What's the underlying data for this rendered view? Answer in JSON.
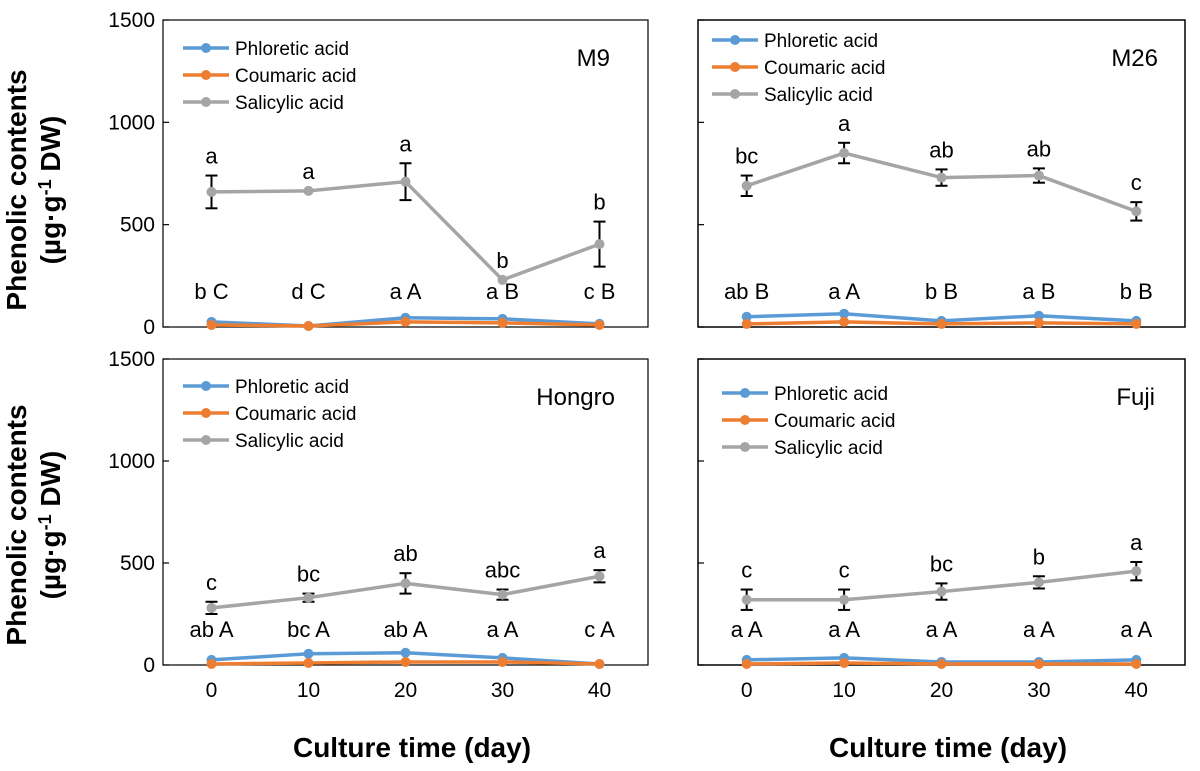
{
  "colors": {
    "phloretic": "#5b9bd5",
    "coumaric": "#ed7d31",
    "salicylic": "#a5a5a5",
    "axis": "#000000"
  },
  "labels": {
    "ylabel_line1": "Phenolic contents",
    "ylabel_line2_prefix": "(µg·g",
    "ylabel_line2_sup": "-1",
    "ylabel_line2_suffix": " DW)",
    "xlabel": "Culture time (day)"
  },
  "chart_data": [
    {
      "type": "line",
      "title": "M9",
      "x": [
        0,
        10,
        20,
        30,
        40
      ],
      "ylim": [
        0,
        1500
      ],
      "yticks": [
        0,
        500,
        1000,
        1500
      ],
      "legend": "top-left",
      "series": [
        {
          "name": "Phloretic acid",
          "values": [
            25,
            5,
            45,
            40,
            15
          ],
          "err": [
            0,
            0,
            0,
            0,
            0
          ]
        },
        {
          "name": "Coumaric acid",
          "values": [
            10,
            5,
            25,
            20,
            10
          ],
          "err": [
            0,
            0,
            0,
            0,
            0
          ]
        },
        {
          "name": "Salicylic acid",
          "values": [
            660,
            665,
            710,
            230,
            405
          ],
          "err": [
            80,
            0,
            90,
            0,
            110
          ]
        }
      ],
      "sig_upper": [
        "a",
        "a",
        "a",
        "b",
        "b"
      ],
      "sig_lower": [
        "b C",
        "d C",
        "a A",
        "a B",
        "c B"
      ]
    },
    {
      "type": "line",
      "title": "M26",
      "x": [
        0,
        10,
        20,
        30,
        40
      ],
      "ylim": [
        0,
        1500
      ],
      "yticks": [
        0,
        500,
        1000,
        1500
      ],
      "legend": "top-left",
      "series": [
        {
          "name": "Phloretic acid",
          "values": [
            50,
            65,
            30,
            55,
            30
          ],
          "err": [
            0,
            0,
            0,
            0,
            0
          ]
        },
        {
          "name": "Coumaric acid",
          "values": [
            15,
            25,
            15,
            20,
            15
          ],
          "err": [
            0,
            0,
            0,
            0,
            0
          ]
        },
        {
          "name": "Salicylic acid",
          "values": [
            690,
            850,
            730,
            740,
            565
          ],
          "err": [
            50,
            50,
            40,
            35,
            45
          ]
        }
      ],
      "sig_upper": [
        "bc",
        "a",
        "ab",
        "ab",
        "c"
      ],
      "sig_lower": [
        "ab B",
        "a A",
        "b B",
        "a B",
        "b B"
      ]
    },
    {
      "type": "line",
      "title": "Hongro",
      "x": [
        0,
        10,
        20,
        30,
        40
      ],
      "ylim": [
        0,
        1500
      ],
      "yticks": [
        0,
        500,
        1000,
        1500
      ],
      "legend": "top-left",
      "series": [
        {
          "name": "Phloretic acid",
          "values": [
            25,
            55,
            60,
            35,
            5
          ],
          "err": [
            0,
            0,
            0,
            0,
            0
          ]
        },
        {
          "name": "Coumaric acid",
          "values": [
            5,
            10,
            15,
            15,
            5
          ],
          "err": [
            0,
            0,
            0,
            0,
            0
          ]
        },
        {
          "name": "Salicylic acid",
          "values": [
            280,
            330,
            400,
            345,
            435
          ],
          "err": [
            30,
            20,
            50,
            25,
            30
          ]
        }
      ],
      "sig_upper": [
        "c",
        "bc",
        "ab",
        "abc",
        "a"
      ],
      "sig_lower": [
        "ab A",
        "bc A",
        "ab A",
        "a A",
        "c A"
      ]
    },
    {
      "type": "line",
      "title": "Fuji",
      "x": [
        0,
        10,
        20,
        30,
        40
      ],
      "ylim": [
        0,
        1500
      ],
      "yticks": [
        0,
        500,
        1000,
        1500
      ],
      "legend": "top-left",
      "series": [
        {
          "name": "Phloretic acid",
          "values": [
            25,
            35,
            15,
            15,
            25
          ],
          "err": [
            0,
            0,
            0,
            0,
            0
          ]
        },
        {
          "name": "Coumaric acid",
          "values": [
            5,
            10,
            5,
            5,
            5
          ],
          "err": [
            0,
            0,
            0,
            0,
            0
          ]
        },
        {
          "name": "Salicylic acid",
          "values": [
            320,
            320,
            360,
            405,
            460
          ],
          "err": [
            50,
            50,
            40,
            30,
            45
          ]
        }
      ],
      "sig_upper": [
        "c",
        "c",
        "bc",
        "b",
        "a"
      ],
      "sig_lower": [
        "a A",
        "a A",
        "a A",
        "a A",
        "a A"
      ]
    }
  ]
}
